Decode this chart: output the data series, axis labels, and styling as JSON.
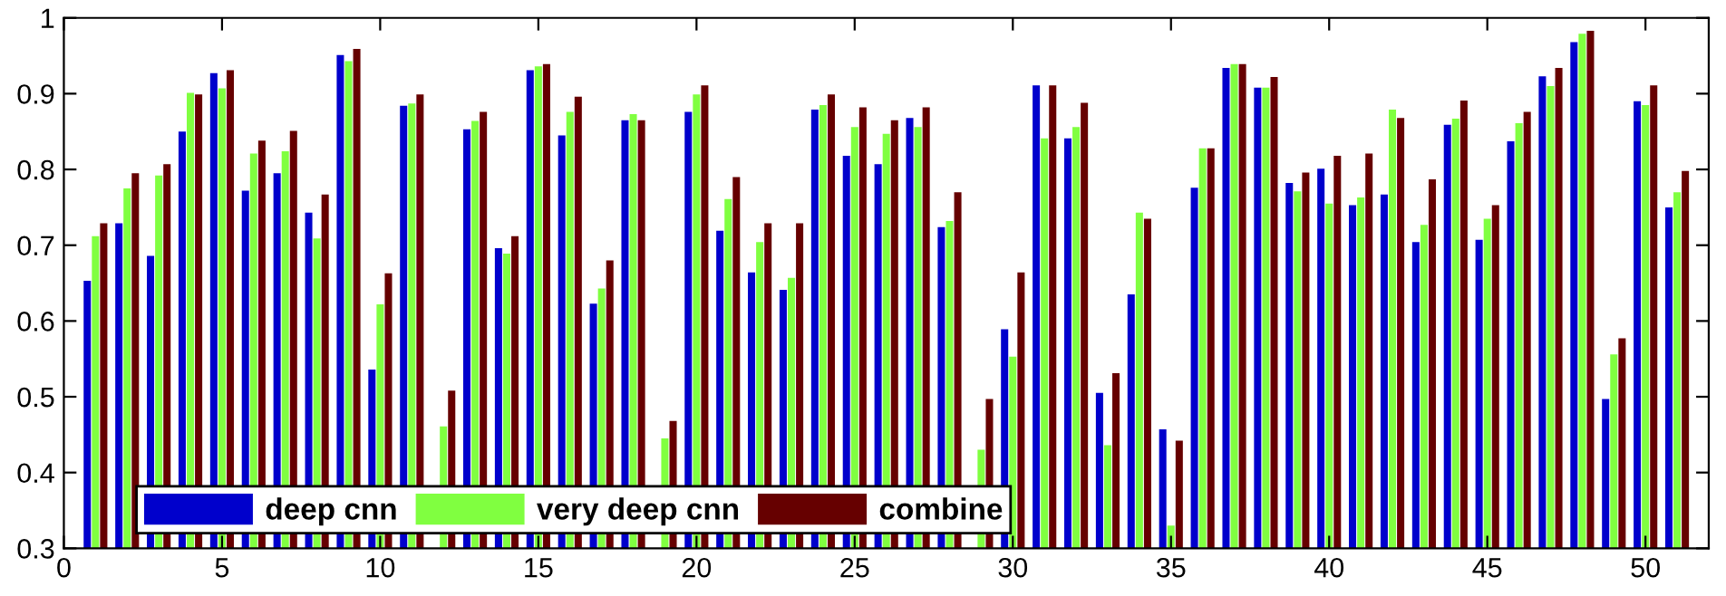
{
  "chart_data": {
    "type": "bar",
    "x": [
      1,
      2,
      3,
      4,
      5,
      6,
      7,
      8,
      9,
      10,
      11,
      12,
      13,
      14,
      15,
      16,
      17,
      18,
      19,
      20,
      21,
      22,
      23,
      24,
      25,
      26,
      27,
      28,
      29,
      30,
      31,
      32,
      33,
      34,
      35,
      36,
      37,
      38,
      39,
      40,
      41,
      42,
      43,
      44,
      45,
      46,
      47,
      48,
      49,
      50,
      51
    ],
    "series": [
      {
        "name": "deep cnn",
        "color": "#0000cc",
        "values": [
          0.653,
          0.729,
          0.686,
          0.85,
          0.927,
          0.772,
          0.795,
          0.743,
          0.951,
          0.536,
          0.884,
          null,
          0.853,
          0.696,
          0.931,
          0.845,
          0.623,
          0.865,
          null,
          0.876,
          0.719,
          0.664,
          0.641,
          0.879,
          0.818,
          0.807,
          0.868,
          0.724,
          null,
          0.589,
          0.911,
          0.841,
          0.505,
          0.635,
          0.457,
          0.776,
          0.934,
          0.908,
          0.782,
          0.801,
          0.753,
          0.767,
          0.704,
          0.859,
          0.707,
          0.837,
          0.923,
          0.968,
          0.497,
          0.89,
          0.75
        ]
      },
      {
        "name": "very deep cnn",
        "color": "#80ff40",
        "values": [
          0.712,
          0.775,
          0.792,
          0.901,
          0.907,
          0.821,
          0.824,
          0.709,
          0.943,
          0.622,
          0.887,
          0.461,
          0.864,
          0.689,
          0.936,
          0.876,
          0.643,
          0.873,
          0.445,
          0.899,
          0.761,
          0.704,
          0.657,
          0.885,
          0.856,
          0.847,
          0.856,
          0.732,
          0.43,
          0.553,
          0.841,
          0.856,
          0.436,
          0.743,
          0.33,
          0.828,
          0.939,
          0.908,
          0.771,
          0.755,
          0.763,
          0.879,
          0.727,
          0.867,
          0.735,
          0.861,
          0.91,
          0.979,
          0.556,
          0.885,
          0.77
        ]
      },
      {
        "name": "combine",
        "color": "#660000",
        "values": [
          0.729,
          0.795,
          0.807,
          0.899,
          0.931,
          0.838,
          0.851,
          0.767,
          0.959,
          0.663,
          0.899,
          0.508,
          0.876,
          0.712,
          0.939,
          0.896,
          0.68,
          0.865,
          0.468,
          0.911,
          0.79,
          0.729,
          0.729,
          0.899,
          0.882,
          0.865,
          0.882,
          0.77,
          0.497,
          0.664,
          0.911,
          0.888,
          0.531,
          0.735,
          0.442,
          0.828,
          0.939,
          0.922,
          0.796,
          0.818,
          0.821,
          0.868,
          0.787,
          0.891,
          0.753,
          0.876,
          0.934,
          0.983,
          0.577,
          0.911,
          0.798
        ]
      }
    ],
    "xlim": [
      0,
      52
    ],
    "xticks": [
      0,
      5,
      10,
      15,
      20,
      25,
      30,
      35,
      40,
      45,
      50
    ],
    "ylim": [
      0.3,
      1
    ],
    "yticks": [
      0.3,
      0.4,
      0.5,
      0.6,
      0.7,
      0.8,
      0.9,
      1
    ],
    "grid": false,
    "legend": "bottom left"
  }
}
